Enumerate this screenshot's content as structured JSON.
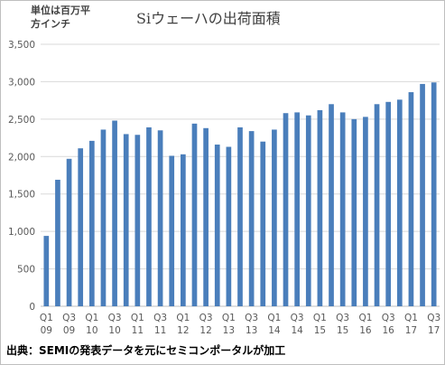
{
  "header": {
    "unit_line1": "単位は百万平",
    "unit_line2": "方インチ",
    "title": "Siウェーハの出荷面積"
  },
  "footer": {
    "source": "出典：SEMIの発表データを元にセミコンポータルが加工"
  },
  "colors": {
    "bar": "#4a7ebb",
    "grid": "#d9d9d9",
    "text": "#595959"
  },
  "chart_data": {
    "type": "bar",
    "title": "Siウェーハの出荷面積",
    "ylabel": "単位は百万平方インチ",
    "ylim": [
      0,
      3500
    ],
    "yticks": [
      0,
      500,
      1000,
      1500,
      2000,
      2500,
      3000,
      3500
    ],
    "ytick_labels": [
      "0",
      "500",
      "1,000",
      "1,500",
      "2,000",
      "2,500",
      "3,000",
      "3,500"
    ],
    "grid": true,
    "categories": [
      "Q1 09",
      "Q2 09",
      "Q3 09",
      "Q4 09",
      "Q1 10",
      "Q2 10",
      "Q3 10",
      "Q4 10",
      "Q1 11",
      "Q2 11",
      "Q3 11",
      "Q4 11",
      "Q1 12",
      "Q2 12",
      "Q3 12",
      "Q4 12",
      "Q1 13",
      "Q2 13",
      "Q3 13",
      "Q4 13",
      "Q1 14",
      "Q2 14",
      "Q3 14",
      "Q4 14",
      "Q1 15",
      "Q2 15",
      "Q3 15",
      "Q4 15",
      "Q1 16",
      "Q2 16",
      "Q3 16",
      "Q4 16",
      "Q1 17",
      "Q2 17",
      "Q3 17"
    ],
    "values": [
      940,
      1690,
      1970,
      2110,
      2210,
      2360,
      2480,
      2300,
      2290,
      2390,
      2350,
      2010,
      2030,
      2440,
      2380,
      2160,
      2130,
      2390,
      2340,
      2200,
      2360,
      2580,
      2590,
      2550,
      2620,
      2700,
      2590,
      2500,
      2530,
      2700,
      2730,
      2760,
      2860,
      2970,
      2990
    ],
    "xtick_labels": [
      {
        "index": 0,
        "q": "Q1",
        "y": "09"
      },
      {
        "index": 2,
        "q": "Q3",
        "y": "09"
      },
      {
        "index": 4,
        "q": "Q1",
        "y": "10"
      },
      {
        "index": 6,
        "q": "Q3",
        "y": "10"
      },
      {
        "index": 8,
        "q": "Q1",
        "y": "11"
      },
      {
        "index": 10,
        "q": "Q3",
        "y": "11"
      },
      {
        "index": 12,
        "q": "Q1",
        "y": "12"
      },
      {
        "index": 14,
        "q": "Q3",
        "y": "12"
      },
      {
        "index": 16,
        "q": "Q1",
        "y": "13"
      },
      {
        "index": 18,
        "q": "Q3",
        "y": "13"
      },
      {
        "index": 20,
        "q": "Q1",
        "y": "14"
      },
      {
        "index": 22,
        "q": "Q3",
        "y": "14"
      },
      {
        "index": 24,
        "q": "Q1",
        "y": "15"
      },
      {
        "index": 26,
        "q": "Q3",
        "y": "15"
      },
      {
        "index": 28,
        "q": "Q1",
        "y": "16"
      },
      {
        "index": 30,
        "q": "Q3",
        "y": "16"
      },
      {
        "index": 32,
        "q": "Q1",
        "y": "17"
      },
      {
        "index": 34,
        "q": "Q3",
        "y": "17"
      }
    ]
  }
}
